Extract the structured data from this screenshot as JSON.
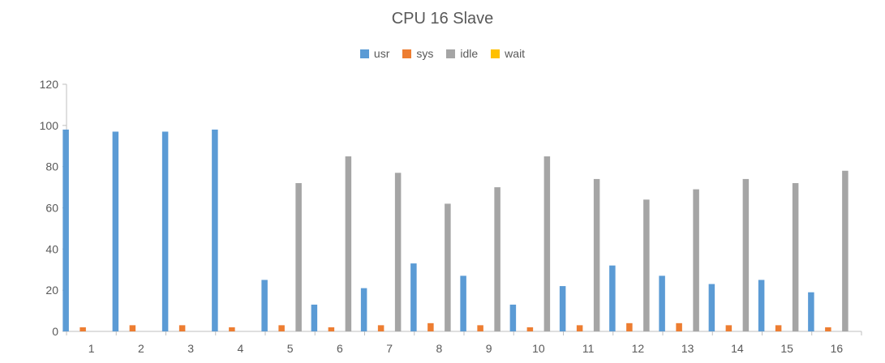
{
  "chart_data": {
    "type": "bar",
    "title": "CPU 16 Slave",
    "xlabel": "",
    "ylabel": "",
    "categories": [
      "1",
      "2",
      "3",
      "4",
      "5",
      "6",
      "7",
      "8",
      "9",
      "10",
      "11",
      "12",
      "13",
      "14",
      "15",
      "16"
    ],
    "series": [
      {
        "name": "usr",
        "color": "#5b9bd5",
        "values": [
          98,
          97,
          97,
          98,
          25,
          13,
          21,
          33,
          27,
          13,
          22,
          32,
          27,
          23,
          25,
          19
        ]
      },
      {
        "name": "sys",
        "color": "#ed7d31",
        "values": [
          2,
          3,
          3,
          2,
          3,
          2,
          3,
          4,
          3,
          2,
          3,
          4,
          4,
          3,
          3,
          2
        ]
      },
      {
        "name": "idle",
        "color": "#a5a5a5",
        "values": [
          0,
          0,
          0,
          0,
          72,
          85,
          77,
          62,
          70,
          85,
          74,
          64,
          69,
          74,
          72,
          78
        ]
      },
      {
        "name": "wait",
        "color": "#ffc000",
        "values": [
          0,
          0,
          0,
          0,
          0,
          0,
          0,
          0,
          0,
          0,
          0,
          0,
          0,
          0,
          0,
          0
        ]
      }
    ],
    "ylim": [
      0,
      120
    ],
    "yticks": [
      0,
      20,
      40,
      60,
      80,
      100,
      120
    ],
    "grid": false,
    "legend": "top-center"
  }
}
